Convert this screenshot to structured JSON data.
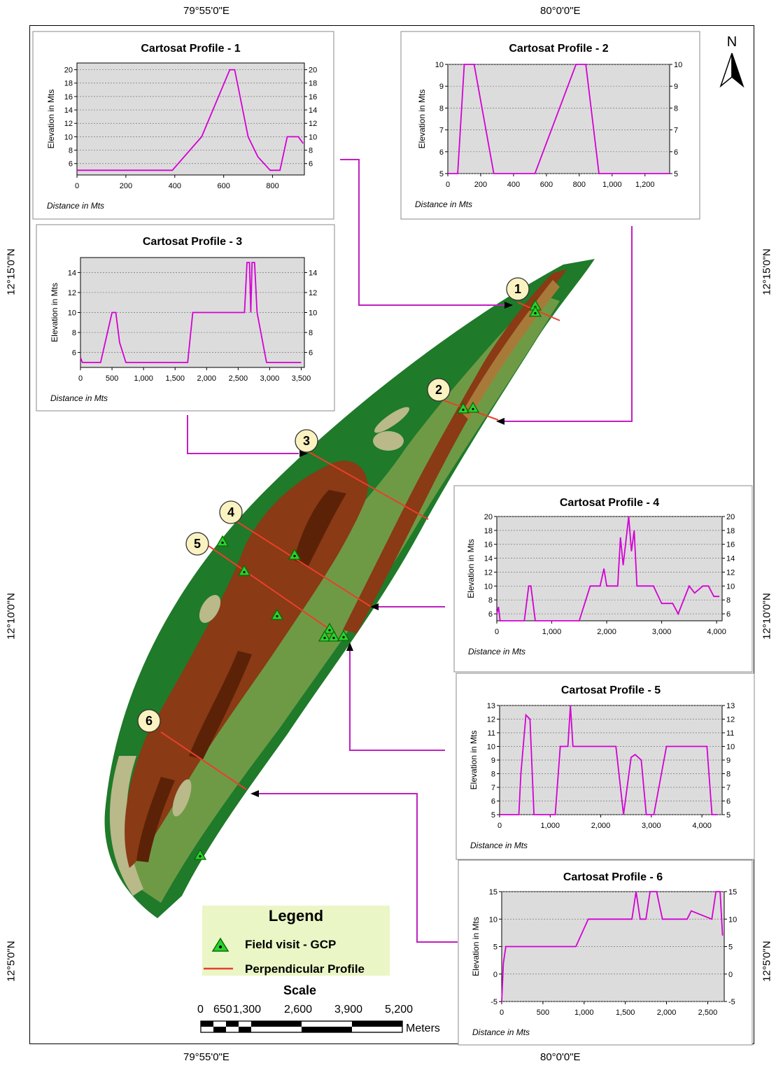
{
  "coords": {
    "top": [
      "79°55'0\"E",
      "80°0'0\"E"
    ],
    "bottom": [
      "79°55'0\"E",
      "80°0'0\"E"
    ],
    "left": [
      "12°15'0\"N",
      "12°10'0\"N",
      "12°5'0\"N"
    ],
    "right": [
      "12°15'0\"N",
      "12°10'0\"N",
      "12°5'0\"N"
    ]
  },
  "north_label": "N",
  "markers": [
    "1",
    "2",
    "3",
    "4",
    "5",
    "6"
  ],
  "legend": {
    "title": "Legend",
    "items": [
      {
        "label": "Field visit - GCP",
        "symbol": "green-triangle",
        "color": "#2bd12b"
      },
      {
        "label": "Perpendicular Profile",
        "symbol": "red-line",
        "color": "#e8402a"
      }
    ]
  },
  "scale": {
    "title": "Scale",
    "numbers": [
      "0",
      "650",
      "1,300",
      "2,600",
      "3,900",
      "5,200"
    ],
    "units": "Meters"
  },
  "colors": {
    "profile_line": "#d400d4",
    "map_dark_green": "#1f7a2a",
    "map_light_green": "#6e9a46",
    "map_khaki": "#b9b98a",
    "map_brown": "#8a3a14",
    "map_dark_brown": "#5b2208",
    "map_tan": "#a87a3a",
    "arrow": "#c020c0",
    "plot_bg": "#dcdcdc",
    "legend_bg": "#eaf6c5"
  },
  "chart_data": [
    {
      "type": "line",
      "title": "Cartosat Profile - 1",
      "xlabel": "Distance in Mts",
      "ylabel": "Elevation in Mts",
      "x_ticks": [
        "0",
        "200",
        "400",
        "600",
        "800"
      ],
      "x_tick_values": [
        0,
        200,
        400,
        600,
        800
      ],
      "y_ticks": [
        "6",
        "8",
        "10",
        "12",
        "14",
        "16",
        "18",
        "20"
      ],
      "y_tick_values": [
        6,
        8,
        10,
        12,
        14,
        16,
        18,
        20
      ],
      "xlim": [
        0,
        930
      ],
      "ylim": [
        4.3,
        21
      ],
      "y_right": true,
      "grid": true,
      "x": [
        0,
        390,
        510,
        625,
        645,
        700,
        740,
        790,
        830,
        860,
        905,
        925
      ],
      "y": [
        5,
        5,
        10,
        20,
        20,
        10,
        7,
        5,
        5,
        10,
        10,
        9
      ]
    },
    {
      "type": "line",
      "title": "Cartosat Profile - 2",
      "xlabel": "Distance in Mts",
      "ylabel": "Elevation in Mts",
      "x_ticks": [
        "0",
        "200",
        "400",
        "600",
        "800",
        "1,000",
        "1,200"
      ],
      "x_tick_values": [
        0,
        200,
        400,
        600,
        800,
        1000,
        1200
      ],
      "y_ticks": [
        "5",
        "6",
        "7",
        "8",
        "9",
        "10"
      ],
      "y_tick_values": [
        5,
        6,
        7,
        8,
        9,
        10
      ],
      "xlim": [
        0,
        1350
      ],
      "ylim": [
        5,
        10
      ],
      "y_right": true,
      "grid": true,
      "x": [
        0,
        60,
        100,
        160,
        280,
        530,
        780,
        840,
        920,
        1350
      ],
      "y": [
        5,
        5,
        10,
        10,
        5,
        5,
        10,
        10,
        5,
        5
      ]
    },
    {
      "type": "line",
      "title": "Cartosat Profile - 3",
      "xlabel": "Distance in Mts",
      "ylabel": "Elevation in Mts",
      "x_ticks": [
        "0",
        "500",
        "1,000",
        "1,500",
        "2,000",
        "2,500",
        "3,000",
        "3,500"
      ],
      "x_tick_values": [
        0,
        500,
        1000,
        1500,
        2000,
        2500,
        3000,
        3500
      ],
      "y_ticks": [
        "6",
        "8",
        "10",
        "12",
        "14"
      ],
      "y_tick_values": [
        6,
        8,
        10,
        12,
        14
      ],
      "xlim": [
        0,
        3550
      ],
      "ylim": [
        4.5,
        15.5
      ],
      "y_right": true,
      "grid": true,
      "x": [
        0,
        30,
        60,
        320,
        500,
        560,
        620,
        720,
        1700,
        1780,
        2600,
        2640,
        2680,
        2700,
        2720,
        2760,
        2800,
        2950,
        3500
      ],
      "y": [
        5.5,
        5,
        5,
        5,
        10,
        10,
        7,
        5,
        5,
        10,
        10,
        15,
        15,
        10,
        15,
        15,
        10,
        5,
        5
      ]
    },
    {
      "type": "line",
      "title": "Cartosat Profile - 4",
      "xlabel": "Distance in Mts",
      "ylabel": "Elevation in Mts",
      "x_ticks": [
        "0",
        "1,000",
        "2,000",
        "3,000",
        "4,000"
      ],
      "x_tick_values": [
        0,
        1000,
        2000,
        3000,
        4000
      ],
      "y_ticks": [
        "6",
        "8",
        "10",
        "12",
        "14",
        "16",
        "18",
        "20"
      ],
      "y_tick_values": [
        6,
        8,
        10,
        12,
        14,
        16,
        18,
        20
      ],
      "xlim": [
        0,
        4100
      ],
      "ylim": [
        5,
        20
      ],
      "y_right": true,
      "grid": true,
      "x": [
        0,
        30,
        60,
        100,
        500,
        580,
        620,
        700,
        1500,
        1700,
        1880,
        1950,
        2000,
        2050,
        2200,
        2250,
        2300,
        2400,
        2450,
        2500,
        2550,
        2650,
        2850,
        3000,
        3200,
        3300,
        3500,
        3600,
        3750,
        3850,
        3950,
        4050
      ],
      "y": [
        6,
        7,
        5,
        5,
        5,
        10,
        10,
        5,
        5,
        10,
        10,
        12.5,
        10,
        10,
        10,
        17,
        13,
        20,
        15,
        18,
        10,
        10,
        10,
        7.5,
        7.5,
        6,
        10,
        9,
        10,
        10,
        8.5,
        8.5
      ]
    },
    {
      "type": "line",
      "title": "Cartosat Profile - 5",
      "xlabel": "Distance in Mts",
      "ylabel": "Elevation in Mts",
      "x_ticks": [
        "0",
        "1,000",
        "2,000",
        "3,000",
        "4,000"
      ],
      "x_tick_values": [
        0,
        1000,
        2000,
        3000,
        4000
      ],
      "y_ticks": [
        "5",
        "6",
        "7",
        "8",
        "9",
        "10",
        "11",
        "12",
        "13"
      ],
      "y_tick_values": [
        5,
        6,
        7,
        8,
        9,
        10,
        11,
        12,
        13
      ],
      "xlim": [
        0,
        4400
      ],
      "ylim": [
        5,
        13
      ],
      "y_right": true,
      "grid": true,
      "x": [
        0,
        380,
        420,
        520,
        600,
        680,
        1100,
        1200,
        1350,
        1400,
        1450,
        2300,
        2450,
        2600,
        2680,
        2800,
        2900,
        3050,
        3300,
        4100,
        4200,
        4300
      ],
      "y": [
        5,
        5,
        8,
        12.3,
        12,
        5,
        5,
        10,
        10,
        13,
        10,
        10,
        5,
        9.2,
        9.4,
        9,
        5,
        5,
        10,
        10,
        5,
        5
      ]
    },
    {
      "type": "line",
      "title": "Cartosat Profile - 6",
      "xlabel": "Distance in Mts",
      "ylabel": "Elevation in Mts",
      "x_ticks": [
        "0",
        "500",
        "1,000",
        "1,500",
        "2,000",
        "2,500"
      ],
      "x_tick_values": [
        0,
        500,
        1000,
        1500,
        2000,
        2500
      ],
      "y_ticks": [
        "-5",
        "0",
        "5",
        "10",
        "15"
      ],
      "y_tick_values": [
        -5,
        0,
        5,
        10,
        15
      ],
      "xlim": [
        0,
        2700
      ],
      "ylim": [
        -5,
        15
      ],
      "y_right": true,
      "grid": true,
      "x": [
        0,
        20,
        50,
        900,
        1050,
        1580,
        1630,
        1680,
        1750,
        1800,
        1880,
        1950,
        2250,
        2300,
        2550,
        2600,
        2650,
        2680
      ],
      "y": [
        -5,
        2,
        5,
        5,
        10,
        10,
        15,
        10,
        10,
        15,
        15,
        10,
        10,
        11.5,
        10,
        15,
        15,
        7
      ]
    }
  ]
}
